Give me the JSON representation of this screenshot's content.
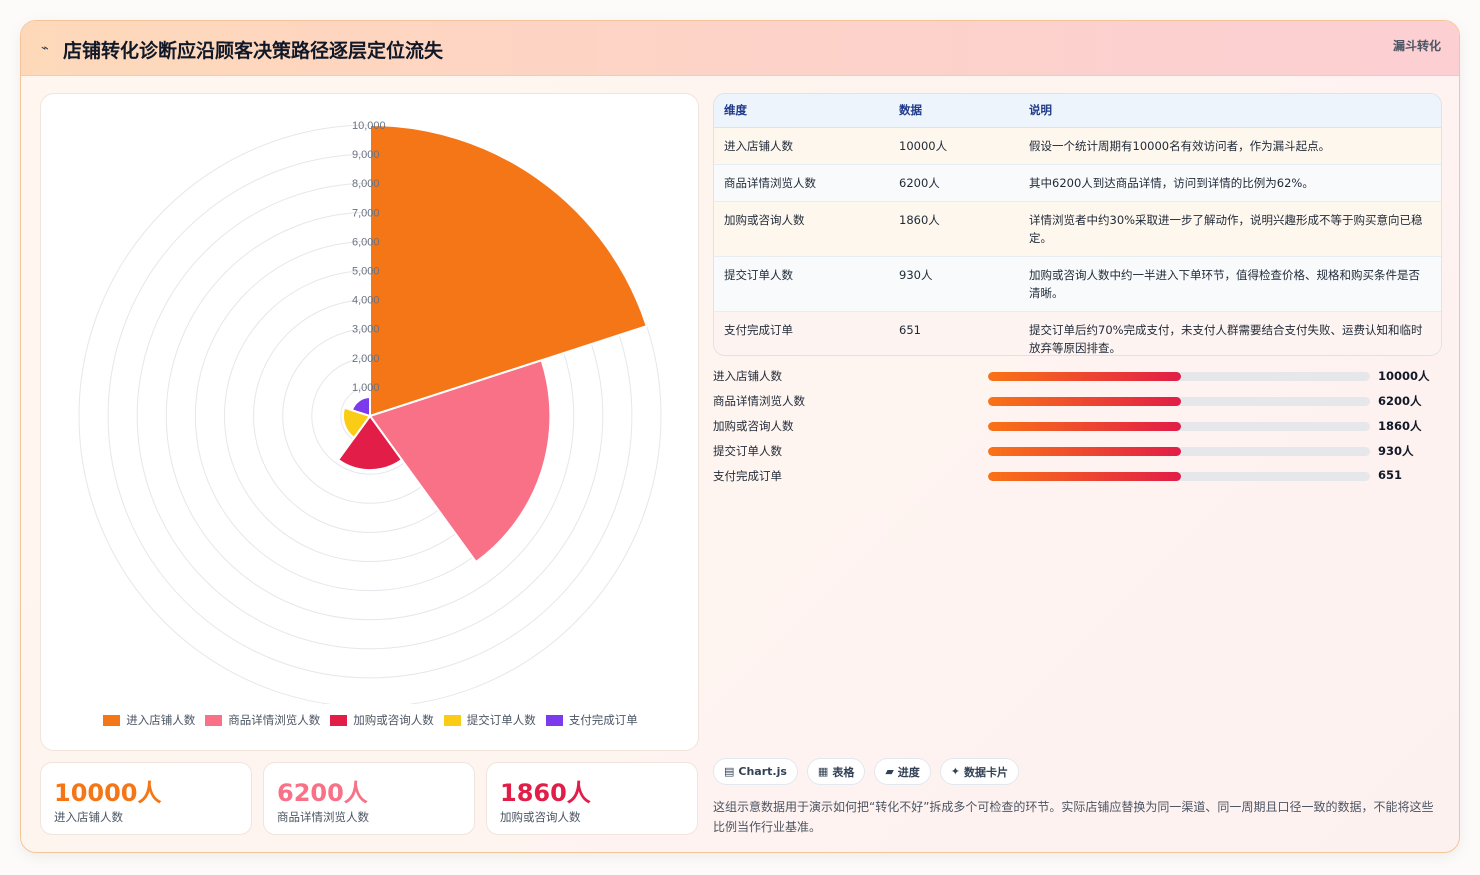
{
  "header": {
    "title": "店铺转化诊断应沿顾客决策路径逐层定位流失",
    "tag": "漏斗转化",
    "icon": "chart-icon"
  },
  "chart_data": {
    "type": "polarArea",
    "categories": [
      "进入店铺人数",
      "商品详情浏览人数",
      "加购或咨询人数",
      "提交订单人数",
      "支付完成订单"
    ],
    "values": [
      10000,
      6200,
      1860,
      930,
      651
    ],
    "colors": [
      "#f47617",
      "#f87187",
      "#e11d48",
      "#facc15",
      "#7c3aed"
    ],
    "r_range": [
      0,
      10000
    ],
    "tick_labels": [
      "1,000",
      "2,000",
      "3,000",
      "4,000",
      "5,000",
      "6,000",
      "7,000",
      "8,000",
      "9,000",
      "10,000"
    ],
    "legend_position": "bottom",
    "grid": true
  },
  "stats": [
    {
      "value": "10000人",
      "label": "进入店铺人数",
      "color": "#f47617"
    },
    {
      "value": "6200人",
      "label": "商品详情浏览人数",
      "color": "#f87187"
    },
    {
      "value": "1860人",
      "label": "加购或咨询人数",
      "color": "#e11d48"
    }
  ],
  "table": {
    "headers": [
      "维度",
      "数据",
      "说明"
    ],
    "rows": [
      {
        "dim": "进入店铺人数",
        "data": "10000人",
        "desc": "假设一个统计周期有10000名有效访问者，作为漏斗起点。"
      },
      {
        "dim": "商品详情浏览人数",
        "data": "6200人",
        "desc": "其中6200人到达商品详情，访问到详情的比例为62%。"
      },
      {
        "dim": "加购或咨询人数",
        "data": "1860人",
        "desc": "详情浏览者中约30%采取进一步了解动作，说明兴趣形成不等于购买意向已稳定。"
      },
      {
        "dim": "提交订单人数",
        "data": "930人",
        "desc": "加购或咨询人数中约一半进入下单环节，值得检查价格、规格和购买条件是否清晰。"
      },
      {
        "dim": "支付完成订单",
        "data": "651",
        "desc": "提交订单后约70%完成支付，未支付人群需要结合支付失败、运费认知和临时放弃等原因排查。"
      }
    ]
  },
  "bars": [
    {
      "label": "进入店铺人数",
      "value": "10000人",
      "fill_percent": 50.5
    },
    {
      "label": "商品详情浏览人数",
      "value": "6200人",
      "fill_percent": 50.5
    },
    {
      "label": "加购或咨询人数",
      "value": "1860人",
      "fill_percent": 50.5
    },
    {
      "label": "提交订单人数",
      "value": "930人",
      "fill_percent": 50.5
    },
    {
      "label": "支付完成订单",
      "value": "651",
      "fill_percent": 50.5
    }
  ],
  "chips": [
    {
      "icon": "▤",
      "label": "Chart.js"
    },
    {
      "icon": "▦",
      "label": "表格"
    },
    {
      "icon": "▰",
      "label": "进度"
    },
    {
      "icon": "✦",
      "label": "数据卡片"
    }
  ],
  "footnote": "这组示意数据用于演示如何把“转化不好”拆成多个可检查的环节。实际店铺应替换为同一渠道、同一周期且口径一致的数据，不能将这些比例当作行业基准。"
}
